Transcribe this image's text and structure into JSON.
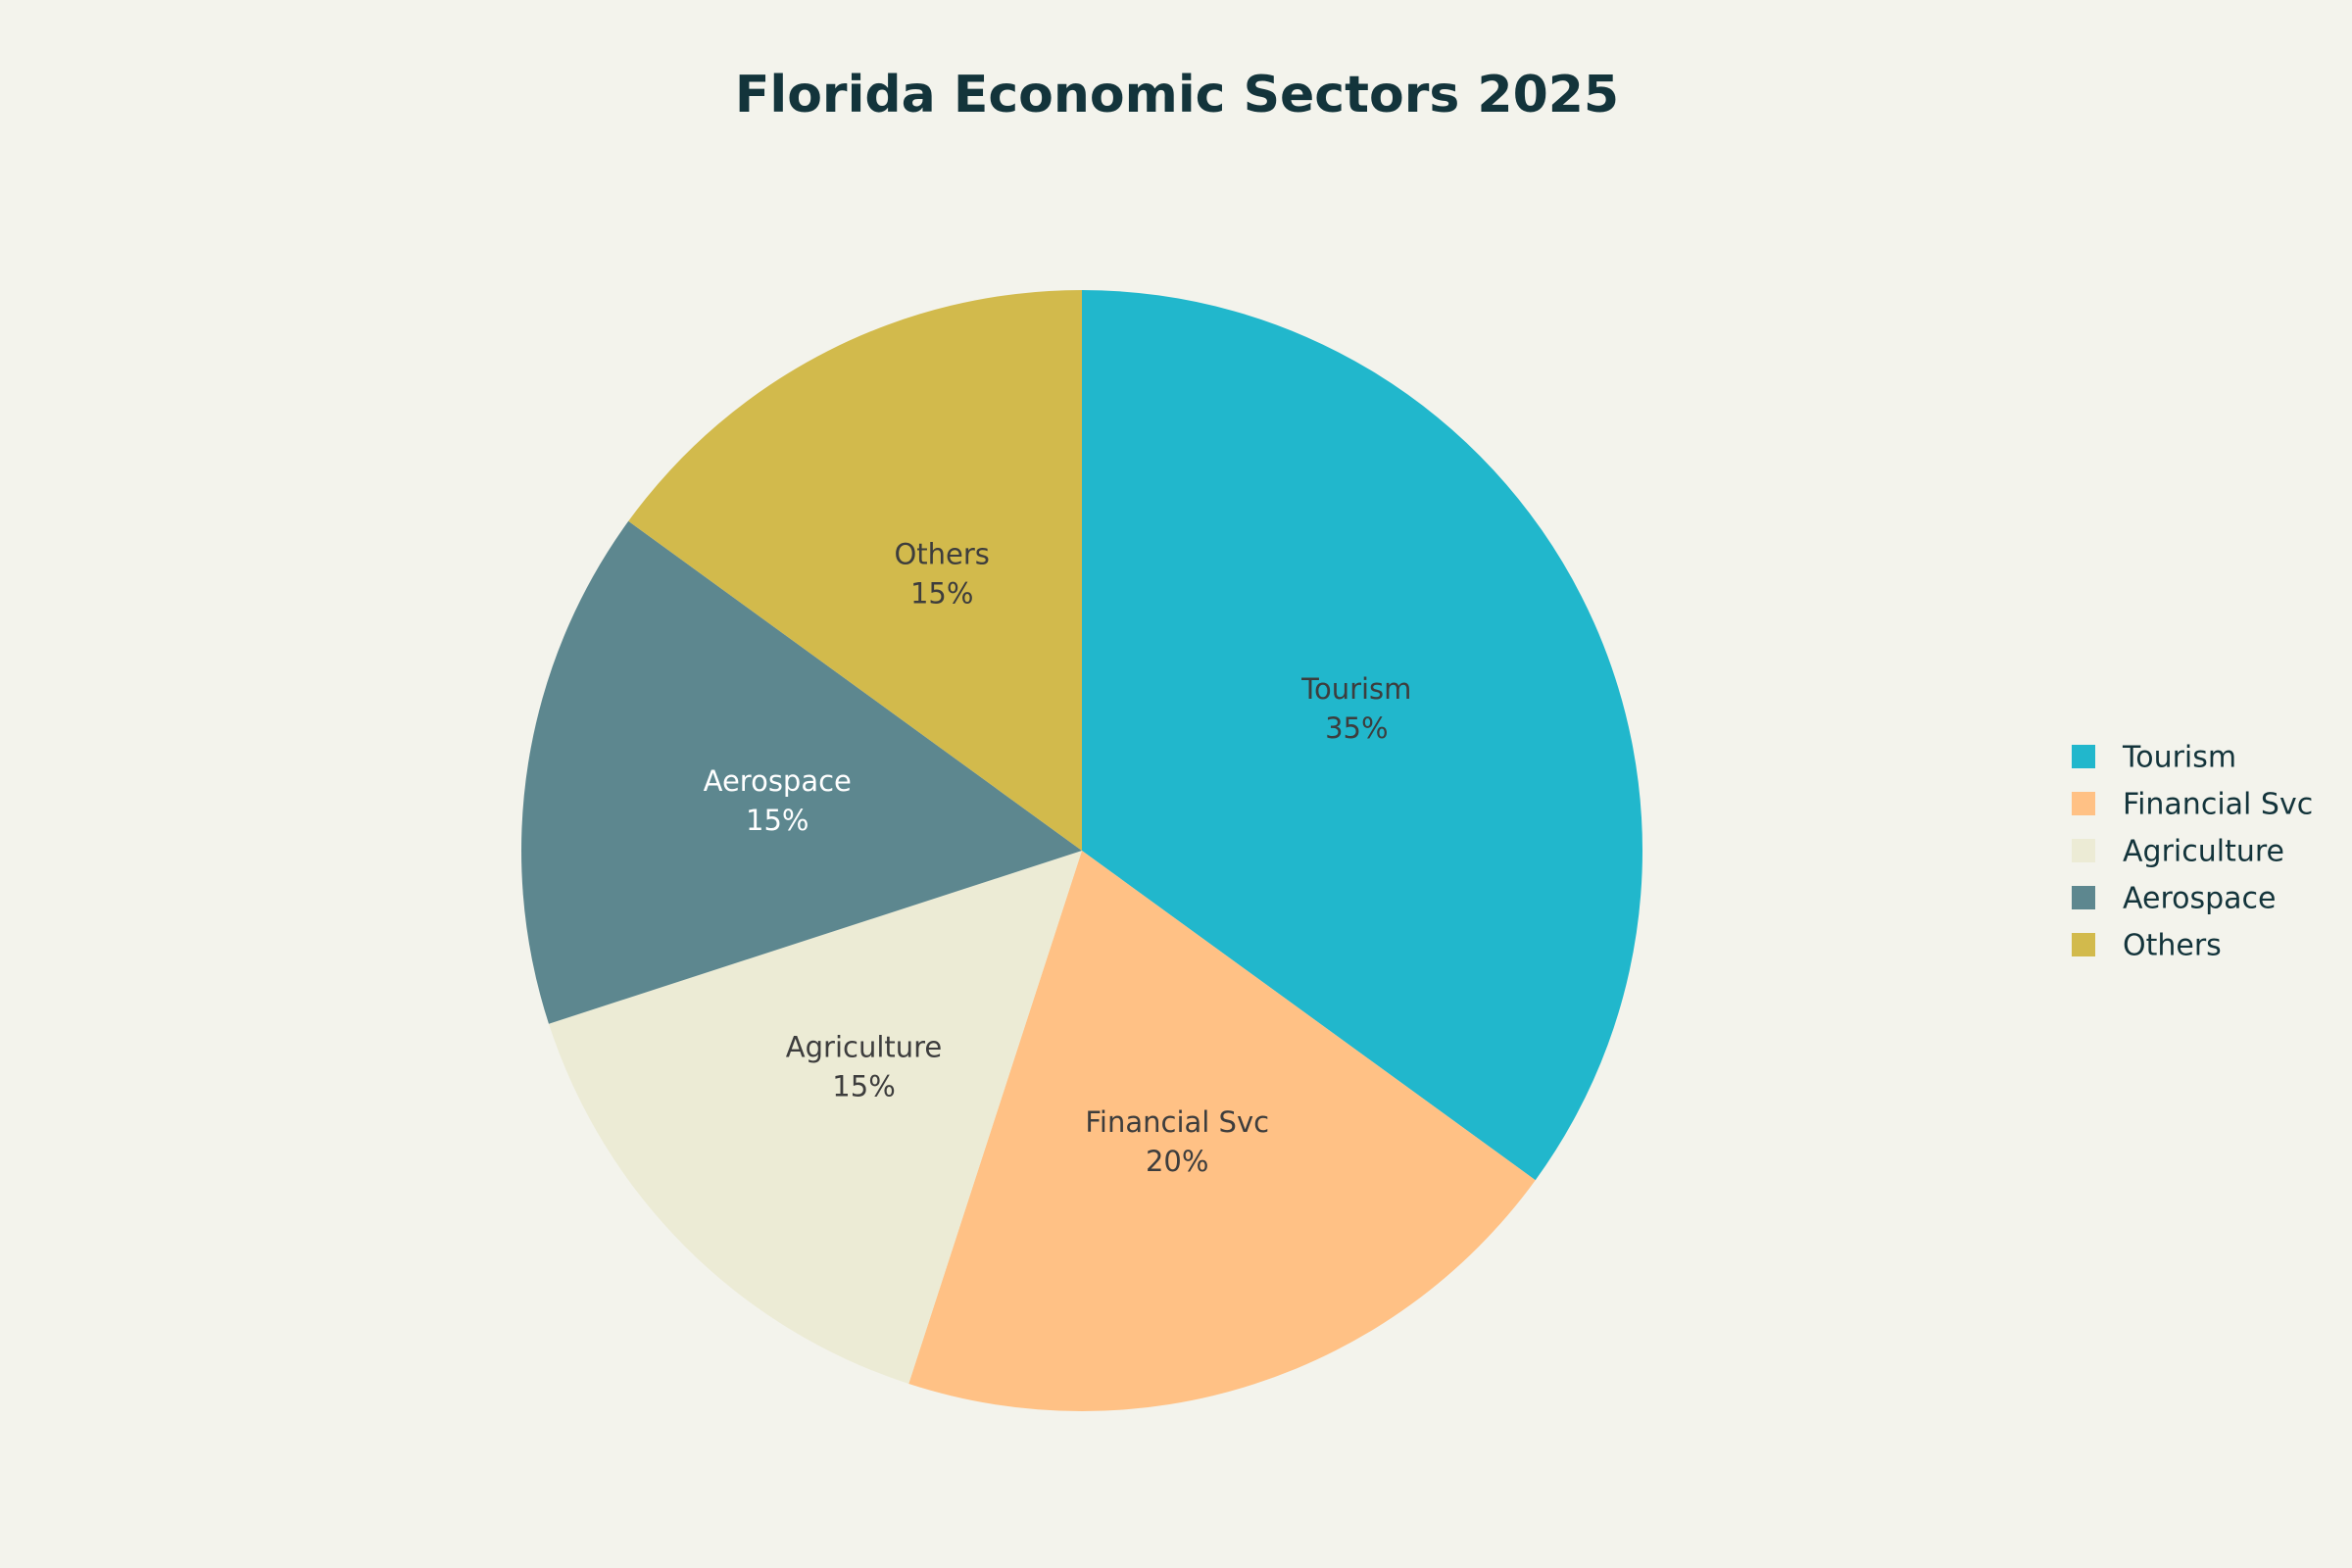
{
  "chart_data": {
    "type": "pie",
    "title": "Florida Economic Sectors 2025",
    "categories": [
      "Tourism",
      "Financial Svc",
      "Agriculture",
      "Aerospace",
      "Others"
    ],
    "values": [
      35,
      20,
      15,
      15,
      15
    ],
    "value_labels": [
      "35%",
      "20%",
      "15%",
      "15%",
      "15%"
    ],
    "colors": [
      "#21b7cc",
      "#ffc185",
      "#ecebd5",
      "#5d878f",
      "#d2ba4c"
    ],
    "legend": "right"
  }
}
